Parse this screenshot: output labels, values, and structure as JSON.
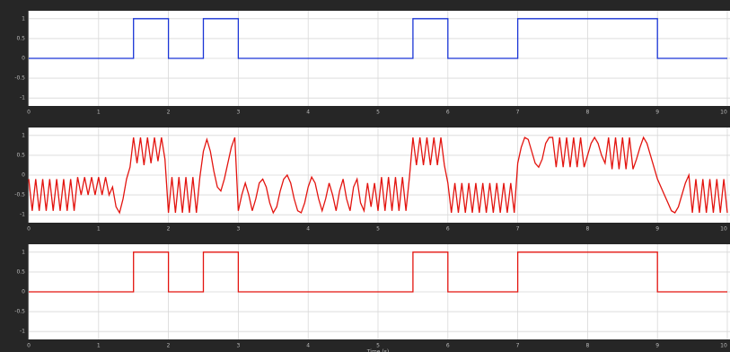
{
  "chart_data": [
    {
      "type": "line",
      "grid": true,
      "xlim": [
        0,
        10
      ],
      "xticks": [
        0,
        1,
        2,
        3,
        4,
        5,
        6,
        7,
        8,
        9,
        10
      ],
      "ylim": [
        -1.2,
        1.2
      ],
      "yticks": [
        -1,
        -0.5,
        0,
        0.5,
        1
      ],
      "x": [
        0,
        1.5,
        1.5,
        2,
        2,
        2.5,
        2.5,
        3,
        3,
        5.5,
        5.5,
        6,
        6,
        7,
        7,
        9,
        9,
        10
      ],
      "series": [
        {
          "color": "#1a35d6",
          "values": [
            0,
            0,
            1,
            1,
            0,
            0,
            1,
            1,
            0,
            0,
            1,
            1,
            0,
            0,
            1,
            1,
            0,
            0
          ]
        }
      ]
    },
    {
      "type": "line",
      "grid": true,
      "xlim": [
        0,
        10
      ],
      "xticks": [
        0,
        1,
        2,
        3,
        4,
        5,
        6,
        7,
        8,
        9,
        10
      ],
      "ylim": [
        -1.2,
        1.2
      ],
      "yticks": [
        -1,
        -0.5,
        0,
        0.5,
        1
      ],
      "x": [
        0,
        0.05,
        0.1,
        0.15,
        0.2,
        0.25,
        0.3,
        0.35,
        0.4,
        0.45,
        0.5,
        0.55,
        0.6,
        0.65,
        0.7,
        0.75,
        0.8,
        0.85,
        0.9,
        0.95,
        1,
        1.05,
        1.1,
        1.15,
        1.2,
        1.25,
        1.3,
        1.35,
        1.4,
        1.45,
        1.5,
        1.55,
        1.6,
        1.65,
        1.7,
        1.75,
        1.8,
        1.85,
        1.9,
        1.95,
        2,
        2.05,
        2.1,
        2.15,
        2.2,
        2.25,
        2.3,
        2.35,
        2.4,
        2.45,
        2.5,
        2.55,
        2.6,
        2.65,
        2.7,
        2.75,
        2.8,
        2.85,
        2.9,
        2.95,
        3,
        3.05,
        3.1,
        3.15,
        3.2,
        3.25,
        3.3,
        3.35,
        3.4,
        3.45,
        3.5,
        3.55,
        3.6,
        3.65,
        3.7,
        3.75,
        3.8,
        3.85,
        3.9,
        3.95,
        4,
        4.05,
        4.1,
        4.15,
        4.2,
        4.25,
        4.3,
        4.35,
        4.4,
        4.45,
        4.5,
        4.55,
        4.6,
        4.65,
        4.7,
        4.75,
        4.8,
        4.85,
        4.9,
        4.95,
        5,
        5.05,
        5.1,
        5.15,
        5.2,
        5.25,
        5.3,
        5.35,
        5.4,
        5.45,
        5.5,
        5.55,
        5.6,
        5.65,
        5.7,
        5.75,
        5.8,
        5.85,
        5.9,
        5.95,
        6,
        6.05,
        6.1,
        6.15,
        6.2,
        6.25,
        6.3,
        6.35,
        6.4,
        6.45,
        6.5,
        6.55,
        6.6,
        6.65,
        6.7,
        6.75,
        6.8,
        6.85,
        6.9,
        6.95,
        7,
        7.05,
        7.1,
        7.15,
        7.2,
        7.25,
        7.3,
        7.35,
        7.4,
        7.45,
        7.5,
        7.55,
        7.6,
        7.65,
        7.7,
        7.75,
        7.8,
        7.85,
        7.9,
        7.95,
        8,
        8.05,
        8.1,
        8.15,
        8.2,
        8.25,
        8.3,
        8.35,
        8.4,
        8.45,
        8.5,
        8.55,
        8.6,
        8.65,
        8.7,
        8.75,
        8.8,
        8.85,
        8.9,
        8.95,
        9,
        9.05,
        9.1,
        9.15,
        9.2,
        9.25,
        9.3,
        9.35,
        9.4,
        9.45,
        9.5,
        9.55,
        9.6,
        9.65,
        9.7,
        9.75,
        9.8,
        9.85,
        9.9,
        9.95,
        10
      ],
      "series": [
        {
          "color": "#e3140f",
          "values": [
            -0.1,
            -0.9,
            -0.1,
            -0.9,
            -0.1,
            -0.9,
            -0.1,
            -0.9,
            -0.1,
            -0.9,
            -0.1,
            -0.9,
            -0.1,
            -0.9,
            -0.05,
            -0.5,
            -0.05,
            -0.5,
            -0.05,
            -0.5,
            -0.05,
            -0.5,
            -0.05,
            -0.5,
            -0.3,
            -0.8,
            -0.95,
            -0.6,
            -0.1,
            0.2,
            0.95,
            0.3,
            0.95,
            0.25,
            0.95,
            0.3,
            0.95,
            0.35,
            0.95,
            0.4,
            -0.95,
            -0.05,
            -0.95,
            -0.05,
            -0.95,
            -0.05,
            -0.95,
            -0.05,
            -0.95,
            -0.05,
            0.6,
            0.9,
            0.6,
            0.1,
            -0.3,
            -0.4,
            -0.1,
            0.3,
            0.7,
            0.95,
            -0.9,
            -0.5,
            -0.2,
            -0.5,
            -0.9,
            -0.6,
            -0.2,
            -0.1,
            -0.3,
            -0.7,
            -0.95,
            -0.8,
            -0.4,
            -0.1,
            0,
            -0.2,
            -0.6,
            -0.9,
            -0.95,
            -0.7,
            -0.3,
            -0.05,
            -0.2,
            -0.6,
            -0.9,
            -0.6,
            -0.2,
            -0.5,
            -0.9,
            -0.4,
            -0.1,
            -0.6,
            -0.9,
            -0.3,
            -0.1,
            -0.7,
            -0.9,
            -0.2,
            -0.8,
            -0.2,
            -0.9,
            -0.05,
            -0.9,
            -0.05,
            -0.9,
            -0.05,
            -0.9,
            -0.05,
            -0.9,
            -0.05,
            0.95,
            0.25,
            0.95,
            0.25,
            0.95,
            0.25,
            0.95,
            0.25,
            0.95,
            0.25,
            -0.2,
            -0.95,
            -0.2,
            -0.95,
            -0.2,
            -0.95,
            -0.2,
            -0.95,
            -0.2,
            -0.95,
            -0.2,
            -0.95,
            -0.2,
            -0.95,
            -0.2,
            -0.95,
            -0.2,
            -0.95,
            -0.2,
            -0.95,
            0.3,
            0.7,
            0.95,
            0.9,
            0.6,
            0.3,
            0.2,
            0.4,
            0.8,
            0.95,
            0.95,
            0.2,
            0.95,
            0.2,
            0.95,
            0.2,
            0.95,
            0.2,
            0.95,
            0.2,
            0.5,
            0.8,
            0.95,
            0.8,
            0.5,
            0.3,
            0.95,
            0.15,
            0.95,
            0.15,
            0.95,
            0.15,
            0.95,
            0.15,
            0.4,
            0.7,
            0.95,
            0.8,
            0.5,
            0.2,
            -0.1,
            -0.3,
            -0.5,
            -0.7,
            -0.9,
            -0.95,
            -0.8,
            -0.5,
            -0.2,
            0,
            -0.95,
            -0.1,
            -0.95,
            -0.1,
            -0.95,
            -0.1,
            -0.95,
            -0.1,
            -0.95,
            -0.1,
            -0.95
          ]
        }
      ]
    },
    {
      "type": "line",
      "grid": true,
      "xlim": [
        0,
        10
      ],
      "xticks": [
        0,
        1,
        2,
        3,
        4,
        5,
        6,
        7,
        8,
        9,
        10
      ],
      "ylim": [
        -1.2,
        1.2
      ],
      "yticks": [
        -1,
        -0.5,
        0,
        0.5,
        1
      ],
      "xlabel": "Time (s)",
      "x": [
        0,
        1.5,
        1.5,
        2,
        2,
        2.5,
        2.5,
        3,
        3,
        5.5,
        5.5,
        6,
        6,
        7,
        7,
        9,
        9,
        10
      ],
      "series": [
        {
          "color": "#e3140f",
          "values": [
            0,
            0,
            1,
            1,
            0,
            0,
            1,
            1,
            0,
            0,
            1,
            1,
            0,
            0,
            1,
            1,
            0,
            0
          ]
        }
      ]
    }
  ]
}
